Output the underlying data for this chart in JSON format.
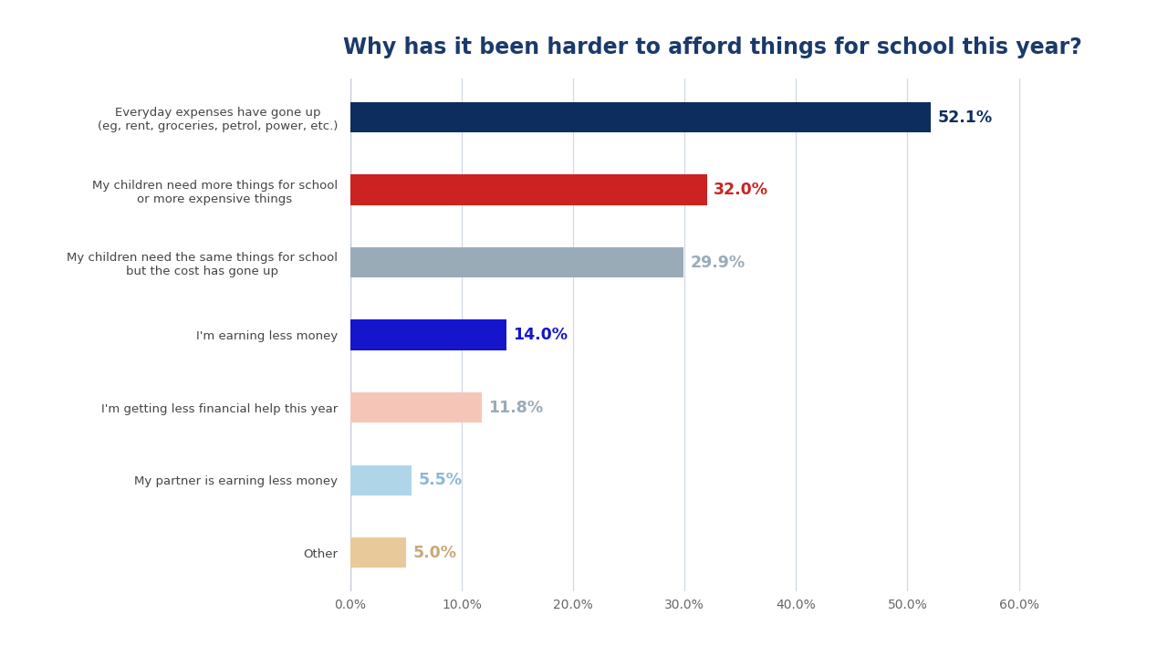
{
  "title": "Why has it been harder to afford things for school this year?",
  "title_color": "#1a3a6b",
  "title_fontsize": 17,
  "categories": [
    "Other",
    "My partner is earning less money",
    "I'm getting less financial help this year",
    "I'm earning less money",
    "My children need the same things for school\nbut the cost has gone up",
    "My children need more things for school\nor more expensive things",
    "Everyday expenses have gone up\n(eg, rent, groceries, petrol, power, etc.)"
  ],
  "values": [
    5.0,
    5.5,
    11.8,
    14.0,
    29.9,
    32.0,
    52.1
  ],
  "bar_colors": [
    "#e8c99a",
    "#aed6e8",
    "#f5c6b8",
    "#1515cc",
    "#9aabb8",
    "#cc2222",
    "#0d2d5e"
  ],
  "value_colors": [
    "#c8a878",
    "#8ab8d4",
    "#9aabb8",
    "#1515cc",
    "#9aabb8",
    "#cc2222",
    "#0d2d5e"
  ],
  "xlabel_ticks": [
    0.0,
    10.0,
    20.0,
    30.0,
    40.0,
    50.0,
    60.0
  ],
  "xlim": [
    0,
    65
  ],
  "background_color": "#ffffff",
  "grid_color": "#d0d8e4",
  "bar_height": 0.42
}
